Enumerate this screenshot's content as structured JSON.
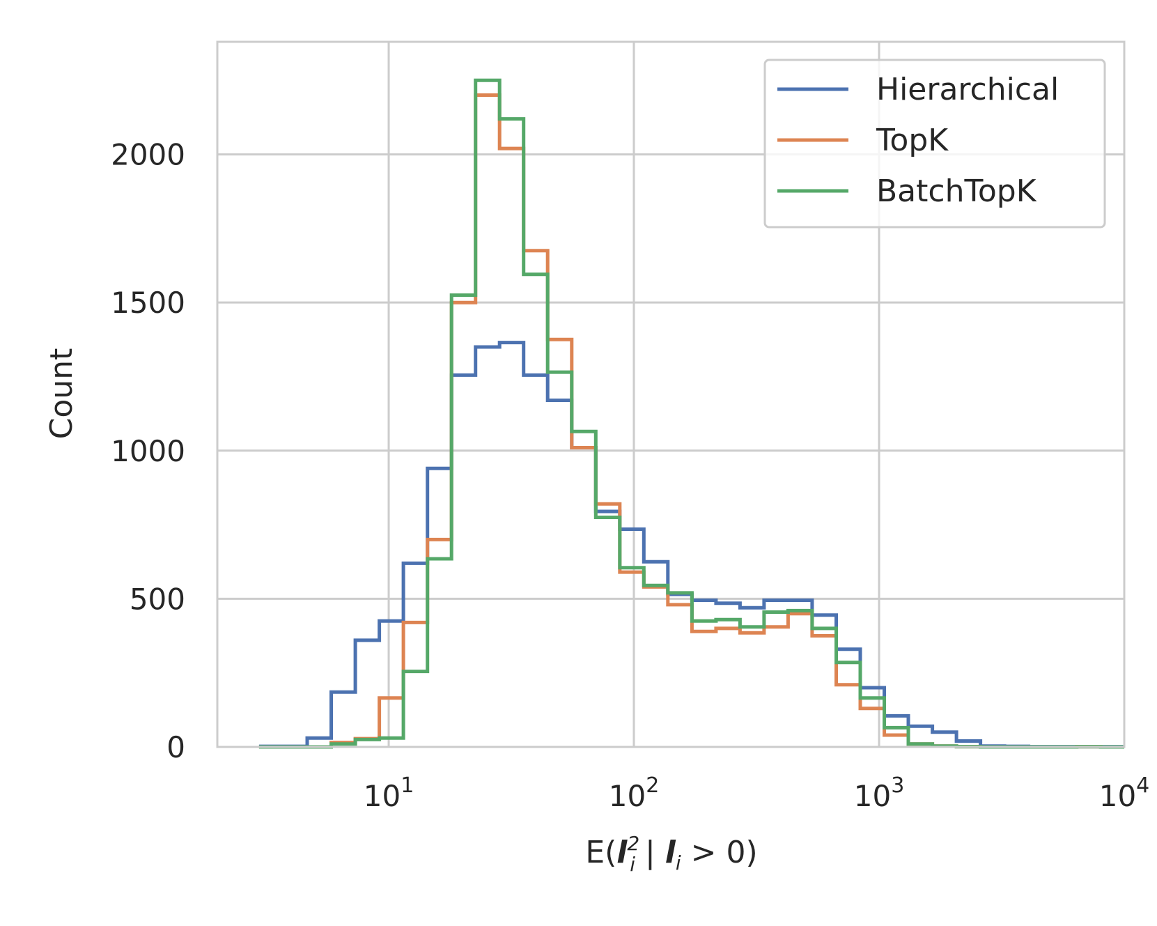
{
  "chart_data": {
    "type": "step-histogram",
    "x_scale": "log",
    "xlim": [
      2,
      10000
    ],
    "ylim": [
      0,
      2380
    ],
    "xlabel": "E(l_i^2 | l_i > 0)",
    "ylabel": "Count",
    "grid": true,
    "legend_position": "top-right",
    "x_ticks": [
      {
        "value": 10,
        "base": "10",
        "exp": "1"
      },
      {
        "value": 100,
        "base": "10",
        "exp": "2"
      },
      {
        "value": 1000,
        "base": "10",
        "exp": "3"
      },
      {
        "value": 10000,
        "base": "10",
        "exp": "4"
      }
    ],
    "y_ticks": [
      {
        "value": 0,
        "label": "0"
      },
      {
        "value": 500,
        "label": "500"
      },
      {
        "value": 1000,
        "label": "1000"
      },
      {
        "value": 1500,
        "label": "1500"
      },
      {
        "value": 2000,
        "label": "2000"
      }
    ],
    "bin_edges": [
      2.96,
      3.71,
      4.65,
      5.83,
      7.31,
      9.16,
      11.48,
      14.39,
      18.04,
      22.6,
      28.33,
      35.5,
      44.5,
      55.8,
      69.9,
      87.6,
      109.8,
      137.6,
      172.5,
      216.2,
      271,
      339.6,
      425.6,
      533.4,
      668.6,
      838,
      1050,
      1316,
      1650,
      2068,
      2592,
      3248,
      4071,
      5103,
      6396,
      8016,
      10000
    ],
    "series": [
      {
        "name": "Hierarchical",
        "color": "#4c72b0",
        "counts": [
          2,
          2,
          30,
          185,
          360,
          425,
          620,
          940,
          1255,
          1350,
          1365,
          1255,
          1170,
          1010,
          795,
          735,
          625,
          515,
          495,
          485,
          470,
          495,
          495,
          445,
          330,
          200,
          105,
          70,
          50,
          20,
          3,
          2,
          1,
          1,
          1,
          1
        ]
      },
      {
        "name": "TopK",
        "color": "#dd8452",
        "counts": [
          0,
          0,
          0,
          15,
          28,
          165,
          420,
          700,
          1500,
          2200,
          2020,
          1675,
          1375,
          1010,
          820,
          590,
          540,
          480,
          390,
          400,
          385,
          405,
          450,
          375,
          210,
          130,
          40,
          10,
          3,
          1,
          0,
          0,
          0,
          0,
          1,
          0
        ]
      },
      {
        "name": "BatchTopK",
        "color": "#55a868",
        "counts": [
          0,
          0,
          0,
          10,
          25,
          30,
          255,
          635,
          1525,
          2250,
          2120,
          1595,
          1265,
          1065,
          775,
          605,
          545,
          520,
          425,
          430,
          405,
          455,
          460,
          400,
          285,
          165,
          65,
          10,
          3,
          1,
          0,
          0,
          0,
          0,
          1,
          0
        ]
      }
    ]
  }
}
